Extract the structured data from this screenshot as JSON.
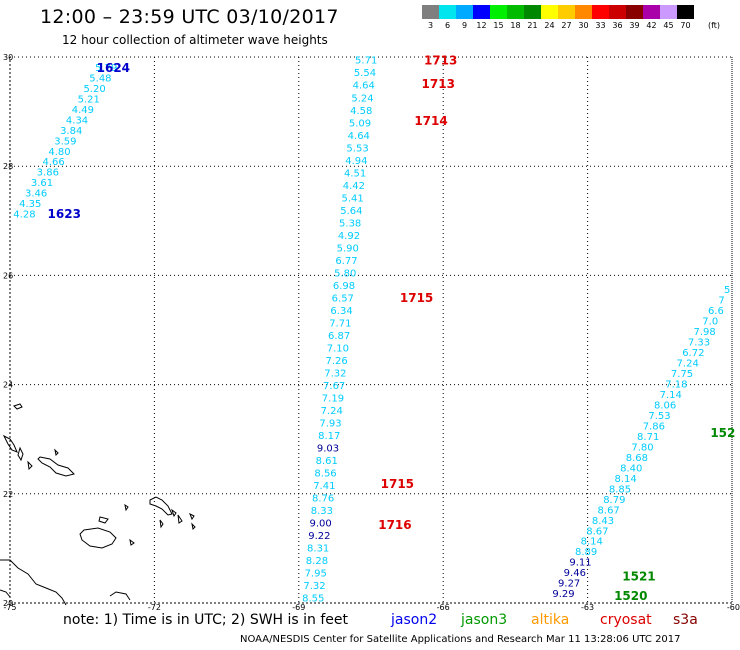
{
  "header": {
    "title": "12:00 – 23:59 UTC 03/10/2017",
    "subtitle": "12 hour collection of altimeter wave heights"
  },
  "colorbar": {
    "labels": [
      "3",
      "6",
      "9",
      "12",
      "15",
      "18",
      "21",
      "24",
      "27",
      "30",
      "33",
      "36",
      "39",
      "42",
      "45",
      "70"
    ],
    "unit": "(ft)",
    "colors": [
      "#7f7f7f",
      "#00e5ee",
      "#00aaff",
      "#0000ff",
      "#00ee00",
      "#00bb00",
      "#008800",
      "#ffff00",
      "#ffcc00",
      "#ff8800",
      "#ff0000",
      "#cc0000",
      "#880000",
      "#aa00aa",
      "#cc99ff",
      "#000000"
    ]
  },
  "axes": {
    "lat_labels": [
      "30",
      "28",
      "26",
      "24",
      "22",
      "20"
    ],
    "lon_labels": [
      "-75",
      "-72",
      "-69",
      "-66",
      "-63",
      "-60"
    ]
  },
  "tracks": [
    {
      "color": "#00ccff",
      "lon_start": -73.0,
      "lat_start": 29.82,
      "lon_end": -74.7,
      "lat_end": 27.13,
      "values": [
        "5.79",
        "5.48",
        "5.20",
        "5.21",
        "4.49",
        "4.34",
        "3.84",
        "3.59",
        "4.80",
        "4.66",
        "3.86",
        "3.61",
        "3.46",
        "4.35",
        "4.28"
      ]
    },
    {
      "color": "#00ccff",
      "lon_start": -67.6,
      "lat_start": 29.95,
      "lon_end": -68.7,
      "lat_end": 20.1,
      "values": [
        "5.71",
        "5.54",
        "4.64",
        "5.24",
        "4.58",
        "5.09",
        "4.64",
        "5.53",
        "4.94",
        "4.51",
        "4.42",
        "5.41",
        "5.64",
        "5.38",
        "4.92",
        "5.90",
        "6.77",
        "5.80",
        "6.98",
        "6.57",
        "6.34",
        "7.71",
        "6.87",
        "7.10",
        "7.26",
        "7.32",
        "7.67",
        "7.19",
        "7.24",
        "7.93",
        "8.17",
        "9.03",
        "8.61",
        "8.56",
        "7.41",
        "8.76",
        "8.33",
        "9.00",
        "9.22",
        "8.31",
        "8.28",
        "7.95",
        "7.32",
        "8.55"
      ]
    },
    {
      "color": "#00ccff",
      "lon_start": -60.1,
      "lat_start": 25.75,
      "lon_end": -63.5,
      "lat_end": 20.18,
      "values": [
        "5",
        "7",
        "6.6",
        "7.0",
        "7.98",
        "7.33",
        "6.72",
        "7.24",
        "7.75",
        "7.18",
        "7.14",
        "8.06",
        "7.53",
        "7.86",
        "8.71",
        "7.80",
        "8.68",
        "8.40",
        "8.14",
        "8.85",
        "8.79",
        "8.67",
        "8.43",
        "8.67",
        "8.14",
        "8.89",
        "9.11",
        "9.46",
        "9.27",
        "9.29"
      ]
    }
  ],
  "dark_values": [
    "9.03",
    "9.00",
    "9.22",
    "9.11",
    "9.46",
    "9.27",
    "9.29"
  ],
  "time_labels": [
    {
      "text": "1624",
      "color": "#0000cc",
      "lon": -73.2,
      "lat": 29.82
    },
    {
      "text": "1623",
      "color": "#0000cc",
      "lon": -74.22,
      "lat": 27.14
    },
    {
      "text": "1713",
      "color": "#dd0000",
      "lon": -66.4,
      "lat": 29.95
    },
    {
      "text": "1713",
      "color": "#dd0000",
      "lon": -66.45,
      "lat": 29.52
    },
    {
      "text": "1714",
      "color": "#dd0000",
      "lon": -66.6,
      "lat": 28.85
    },
    {
      "text": "1715",
      "color": "#dd0000",
      "lon": -66.9,
      "lat": 25.6
    },
    {
      "text": "1715",
      "color": "#dd0000",
      "lon": -67.3,
      "lat": 22.2
    },
    {
      "text": "1716",
      "color": "#dd0000",
      "lon": -67.35,
      "lat": 21.45
    },
    {
      "text": "152",
      "color": "#008800",
      "lon": -60.45,
      "lat": 23.13
    },
    {
      "text": "1521",
      "color": "#008800",
      "lon": -62.28,
      "lat": 20.5
    },
    {
      "text": "1520",
      "color": "#008800",
      "lon": -62.45,
      "lat": 20.15
    }
  ],
  "legend": {
    "note": "note:  1) Time is in UTC;  2) SWH is in feet",
    "items": [
      {
        "name": "jason2",
        "color": "#0000ee"
      },
      {
        "name": "jason3",
        "color": "#009900"
      },
      {
        "name": "altika",
        "color": "#ff9900"
      },
      {
        "name": "cryosat",
        "color": "#dd0000"
      },
      {
        "name": "s3a",
        "color": "#880000"
      }
    ]
  },
  "footer": "NOAA/NESDIS Center for Satellite Applications and Research     Mar 11 13:28:06 UTC 2017"
}
